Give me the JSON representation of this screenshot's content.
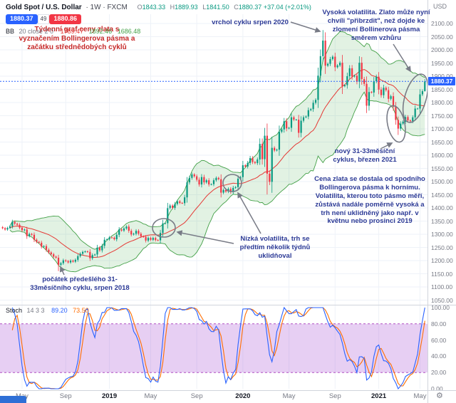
{
  "header": {
    "symbol_bold": "Gold Spot / U.S. Dollar",
    "symbol_rest": "· 1W · FXCM",
    "ohlc": {
      "o_label": "O",
      "o": "1843.33",
      "h_label": "H",
      "h": "1889.93",
      "l_label": "L",
      "l": "1841.50",
      "c_label": "C",
      "c": "1880.37",
      "change": "+37.04 (+2.01%)"
    },
    "sell_price": "1880.37",
    "spread": "49",
    "buy_price": "1880.86",
    "bb_title": "BB",
    "bb_params": "20 close 2 0",
    "bb_basis": "1789.47",
    "bb_upper": "1892.46",
    "bb_lower": "1686.48",
    "currency_label": "USD"
  },
  "stoch_legend": {
    "title": "Stoch",
    "params": "14 3 3",
    "k": "89.20",
    "d": "73.50"
  },
  "price_scale": {
    "last_badge": "1880.37"
  },
  "annotations": {
    "title_note": "Týdenní graf ceny zlata s vyznačením Bollingerova pásma a začátku střednědobých cyklů",
    "cycle_top": "vrchol cyklu srpen 2020",
    "high_vol": "Vysoká volatilita. Zlato může nyní chvíli \"přibrzdit\", než dojde ke zlomení Bollinerova pásma směrem vzhůru",
    "new_cycle": "nový 31-33měsíční cyklus, březen 2021",
    "band_move": "Cena zlata se dostala od spodního Bollingerova pásma k hornímu. Volatilita, kterou toto pásmo měří, zůstává nadále poměrně vysoká a trh není uklidněný jako např. v květnu nebo prosinci 2019",
    "low_vol": "Nízká volatilita, trh se předtím několik týdnů uklidňoval",
    "prev_cycle": "počátek předešlého 31-33měsíčního cyklu, srpen 2018"
  },
  "colors": {
    "up": "#089981",
    "down": "#f23645",
    "grid": "#eef2f8",
    "bb_fill": "rgba(76,175,80,0.16)",
    "bb_line": "#43a047",
    "bb_basis": "#e53935",
    "stoch_k": "#2962ff",
    "stoch_d": "#ff6d00",
    "stoch_band": "rgba(168,84,212,0.28)",
    "stoch_band_line": "#b14fc4",
    "accent_blue": "#2962ff",
    "sell_red": "#f23645",
    "annotation_blue": "#2c3a96",
    "annotation_red": "#c62828",
    "drawing_grey": "#787b86"
  },
  "chart_data": {
    "type": "candlestick",
    "title": "Gold Spot / U.S. Dollar · 1W · FXCM",
    "symbol": "Gold Spot / U.S. Dollar",
    "interval": "1W",
    "exchange": "FXCM",
    "x_unit": "weeks (Mar 2018 - May 2021)",
    "last_price": 1880.37,
    "closes": [
      1323,
      1318,
      1324,
      1330,
      1347,
      1340,
      1336,
      1325,
      1315,
      1318,
      1293,
      1301,
      1298,
      1279,
      1271,
      1268,
      1253,
      1255,
      1241,
      1231,
      1224,
      1215,
      1211,
      1184,
      1190,
      1201,
      1198,
      1193,
      1200,
      1196,
      1203,
      1217,
      1226,
      1233,
      1235,
      1233,
      1209,
      1221,
      1223,
      1249,
      1239,
      1256,
      1279,
      1281,
      1288,
      1287,
      1281,
      1298,
      1318,
      1314,
      1322,
      1329,
      1313,
      1299,
      1302,
      1313,
      1302,
      1292,
      1290,
      1276,
      1286,
      1279,
      1286,
      1278,
      1277,
      1305,
      1341,
      1342,
      1399,
      1409,
      1400,
      1415,
      1425,
      1419,
      1418,
      1440,
      1497,
      1514,
      1527,
      1520,
      1507,
      1489,
      1517,
      1497,
      1505,
      1489,
      1490,
      1505,
      1514,
      1509,
      1458,
      1468,
      1462,
      1472,
      1460,
      1476,
      1479,
      1511,
      1517,
      1562,
      1557,
      1571,
      1589,
      1574,
      1570,
      1584,
      1643,
      1585,
      1674,
      1530,
      1499,
      1628,
      1618,
      1621,
      1689,
      1698,
      1729,
      1702,
      1704,
      1744,
      1735,
      1735,
      1685,
      1731,
      1744,
      1747,
      1771,
      1775,
      1799,
      1810,
      1902,
      1976,
      2035,
      1940,
      1947,
      1965,
      1974,
      1934,
      1941,
      1951,
      1862,
      1866,
      1900,
      1930,
      1899,
      1902,
      1879,
      1951,
      1889,
      1871,
      1788,
      1840,
      1838,
      1881,
      1898,
      1849,
      1828,
      1856,
      1847,
      1814,
      1824,
      1784,
      1734,
      1701,
      1720,
      1727,
      1745,
      1732,
      1729,
      1744,
      1777,
      1777,
      1831,
      1843,
      1880.37
    ],
    "overrides": {
      "23": {
        "low": 1160
      },
      "109": {
        "low": 1451
      },
      "132": {
        "high": 2075
      },
      "163": {
        "low": 1677
      },
      "174": {
        "open": 1843.33,
        "high": 1889.93,
        "low": 1841.5,
        "close": 1880.37
      }
    },
    "price_axis": {
      "min": 1050,
      "max": 2100,
      "step": 50
    },
    "time_ticks": [
      {
        "index": 8,
        "label": "May"
      },
      {
        "index": 26,
        "label": "Sep"
      },
      {
        "index": 44,
        "label": "2019"
      },
      {
        "index": 61,
        "label": "May"
      },
      {
        "index": 80,
        "label": "Sep"
      },
      {
        "index": 99,
        "label": "2020"
      },
      {
        "index": 118,
        "label": "May"
      },
      {
        "index": 137,
        "label": "Sep"
      },
      {
        "index": 155,
        "label": "2021"
      },
      {
        "index": 172,
        "label": "May"
      }
    ],
    "bollinger": {
      "length": 20,
      "mult": 2,
      "legend": {
        "basis": "1789.47",
        "upper": "1892.46",
        "lower": "1686.48"
      }
    },
    "stochastic": {
      "k": 14,
      "smooth": 3,
      "d": 3,
      "upper_band": 80,
      "lower_band": 20,
      "k_value": "89.20",
      "d_value": "73.50",
      "axis_labels": [
        "100.00",
        "80.00",
        "60.00",
        "40.00",
        "20.00",
        "0.00"
      ]
    }
  }
}
